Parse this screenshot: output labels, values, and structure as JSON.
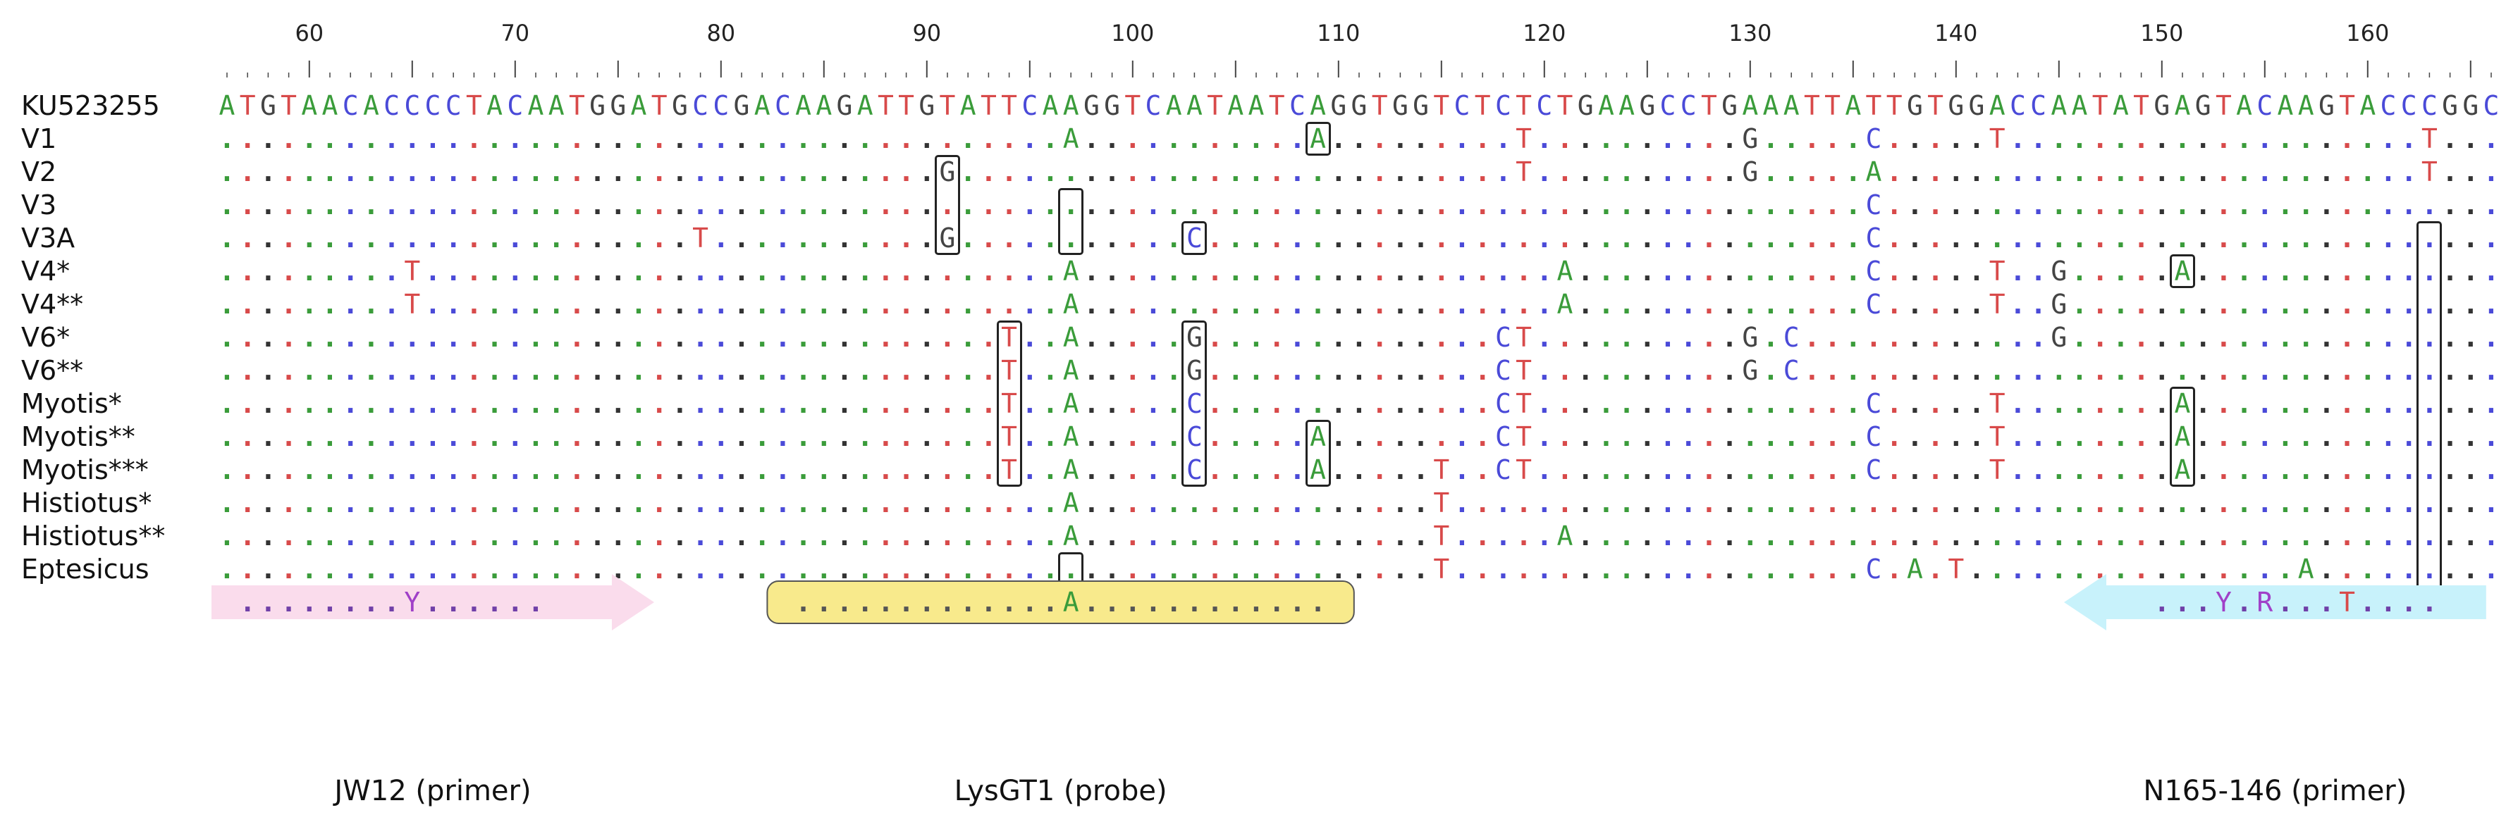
{
  "ruler": {
    "start": 56,
    "ticks": [
      "60",
      "70",
      "80",
      "90",
      "100",
      "110",
      "120",
      "130",
      "140",
      "150",
      "160"
    ]
  },
  "reference": {
    "name": "KU523255",
    "seq": "ATGTAACACCCCTACAATGGATGCCGACAAGATTGTATTCAAGGTCAATAATCAGGTGGTCTCTCTGAAGCCTGAAATTATTGTGGACCAATATGAGTACAAGTACCCGGC"
  },
  "rows": [
    {
      "name": "V1",
      "subs": {
        "97": "A",
        "109": "A",
        "119": "T",
        "130": "G",
        "136": "C",
        "142": "T",
        "163": "T"
      }
    },
    {
      "name": "V2",
      "subs": {
        "91": "G",
        "119": "T",
        "130": "G",
        "136": "A",
        "163": "T"
      }
    },
    {
      "name": "V3",
      "subs": {
        "136": "C"
      }
    },
    {
      "name": "V3A",
      "subs": {
        "79": "T",
        "91": "G",
        "103": "C",
        "136": "C"
      }
    },
    {
      "name": "V4*",
      "subs": {
        "65": "T",
        "97": "A",
        "121": "A",
        "136": "C",
        "142": "T",
        "145": "G",
        "151": "A"
      }
    },
    {
      "name": "V4**",
      "subs": {
        "65": "T",
        "97": "A",
        "121": "A",
        "136": "C",
        "142": "T",
        "145": "G"
      }
    },
    {
      "name": "V6*",
      "subs": {
        "94": "T",
        "97": "A",
        "103": "G",
        "118": "C",
        "119": "T",
        "130": "G",
        "132": "C",
        "145": "G"
      }
    },
    {
      "name": "V6**",
      "subs": {
        "94": "T",
        "97": "A",
        "103": "G",
        "118": "C",
        "119": "T",
        "130": "G",
        "132": "C"
      }
    },
    {
      "name": "Myotis*",
      "subs": {
        "94": "T",
        "97": "A",
        "103": "C",
        "118": "C",
        "119": "T",
        "136": "C",
        "142": "T",
        "151": "A"
      }
    },
    {
      "name": "Myotis**",
      "subs": {
        "94": "T",
        "97": "A",
        "103": "C",
        "109": "A",
        "118": "C",
        "119": "T",
        "136": "C",
        "142": "T",
        "151": "A"
      }
    },
    {
      "name": "Myotis***",
      "subs": {
        "94": "T",
        "97": "A",
        "103": "C",
        "109": "A",
        "115": "T",
        "118": "C",
        "119": "T",
        "136": "C",
        "142": "T",
        "151": "A"
      }
    },
    {
      "name": "Histiotus*",
      "subs": {
        "97": "A",
        "115": "T"
      }
    },
    {
      "name": "Histiotus**",
      "subs": {
        "97": "A",
        "115": "T",
        "121": "A"
      }
    },
    {
      "name": "Eptesicus",
      "subs": {
        "115": "T",
        "136": "C",
        "138": "A",
        "140": "T",
        "157": "A"
      }
    }
  ],
  "features": [
    {
      "id": "jw12",
      "label": "JW12 (primer)",
      "seq": "........Y.......",
      "from": 56,
      "to": 76,
      "style": "arrow-right",
      "fill": "#fadcec"
    },
    {
      "id": "lysgt1",
      "label": "LysGT1 (probe)",
      "seq": "...........................",
      "from": 83,
      "to": 110,
      "style": "box",
      "fill": "#f8ea8c"
    },
    {
      "id": "n165",
      "label": "N165-146 (primer)",
      "seq": "......Y.R...T.",
      "from": 146,
      "to": 165,
      "style": "arrow-left",
      "fill": "#c8f2fb"
    }
  ],
  "probe_substitution": {
    "97": "A"
  },
  "primer_subs": {
    "jw12": {
      "65": "Y"
    },
    "n165": {
      "153": "Y",
      "155": "R",
      "159": "T"
    }
  },
  "boxes": [
    {
      "id": "box-109-v1",
      "pos": 109,
      "rows": [
        0,
        0
      ]
    },
    {
      "id": "box-91",
      "pos": 91,
      "rows": [
        1,
        3
      ]
    },
    {
      "id": "box-97-v3",
      "pos": 97,
      "rows": [
        2,
        3
      ]
    },
    {
      "id": "box-103-v3a",
      "pos": 103,
      "rows": [
        3,
        3
      ]
    },
    {
      "id": "box-163",
      "pos": 163,
      "rows": [
        3,
        13
      ]
    },
    {
      "id": "box-151-v4",
      "pos": 151,
      "rows": [
        4,
        4
      ]
    },
    {
      "id": "box-94",
      "pos": 94,
      "rows": [
        6,
        10
      ]
    },
    {
      "id": "box-103",
      "pos": 103,
      "rows": [
        6,
        10
      ]
    },
    {
      "id": "box-109-my",
      "pos": 109,
      "rows": [
        9,
        10
      ]
    },
    {
      "id": "box-151-my",
      "pos": 151,
      "rows": [
        8,
        10
      ]
    },
    {
      "id": "box-97-ept",
      "pos": 97,
      "rows": [
        13,
        13
      ]
    }
  ],
  "colors": {
    "A": "#3a9c3a",
    "T": "#d84a4a",
    "G": "#444444",
    "C": "#4a4ad8",
    "Y": "#a040c8",
    "R": "#a040c8"
  }
}
